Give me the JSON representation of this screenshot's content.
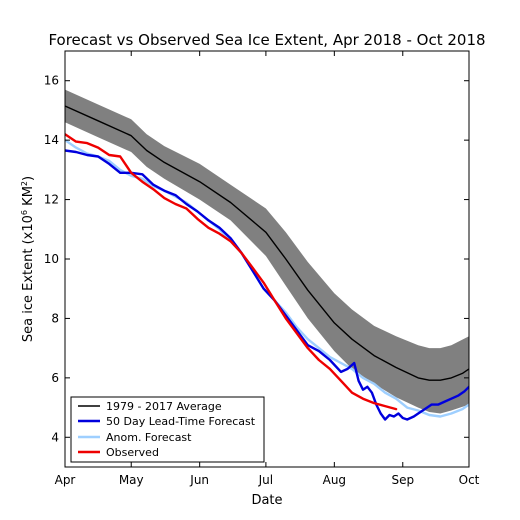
{
  "chart_data": {
    "type": "line",
    "title": "Forecast vs Observed Sea Ice Extent, Apr 2018 - Oct 2018",
    "xlabel": "Date",
    "ylabel": "Sea ice Extent (x10",
    "ylabel_exp": "6",
    "ylabel_unit": "KM",
    "ylabel_unit_exp": "2",
    "ylabel_close": ")",
    "xlim_days": [
      0,
      183
    ],
    "ylim": [
      3,
      17
    ],
    "x_ticks": [
      {
        "label": "Apr",
        "day": 0
      },
      {
        "label": "May",
        "day": 30
      },
      {
        "label": "Jun",
        "day": 61
      },
      {
        "label": "Jul",
        "day": 91
      },
      {
        "label": "Aug",
        "day": 122
      },
      {
        "label": "Sep",
        "day": 153
      },
      {
        "label": "Oct",
        "day": 183
      }
    ],
    "y_ticks": [
      4,
      6,
      8,
      10,
      12,
      14,
      16
    ],
    "legend_position": "lower-left",
    "band": {
      "color": "#808080",
      "x": [
        0,
        15,
        30,
        37,
        45,
        61,
        75,
        91,
        100,
        110,
        122,
        130,
        140,
        150,
        160,
        165,
        170,
        175,
        183
      ],
      "upper": [
        15.7,
        15.2,
        14.7,
        14.2,
        13.8,
        13.2,
        12.5,
        11.7,
        10.9,
        9.9,
        8.85,
        8.3,
        7.75,
        7.4,
        7.1,
        7.0,
        7.0,
        7.1,
        7.4
      ],
      "lower": [
        14.6,
        14.1,
        13.6,
        13.1,
        12.7,
        12.0,
        11.3,
        10.1,
        9.1,
        8.0,
        6.9,
        6.3,
        5.8,
        5.35,
        5.0,
        4.85,
        4.8,
        4.9,
        5.1
      ]
    },
    "series": [
      {
        "name": "1979 - 2017 Average",
        "color": "#000000",
        "width": 1.4,
        "x": [
          0,
          15,
          30,
          37,
          45,
          61,
          75,
          91,
          100,
          110,
          122,
          130,
          140,
          150,
          160,
          165,
          170,
          175,
          180,
          183
        ],
        "y": [
          15.15,
          14.65,
          14.15,
          13.65,
          13.25,
          12.6,
          11.9,
          10.9,
          10.0,
          8.95,
          7.85,
          7.3,
          6.75,
          6.35,
          6.0,
          5.92,
          5.92,
          6.0,
          6.15,
          6.3
        ]
      },
      {
        "name": "50 Day Lead-Time Forecast",
        "color": "#0000dd",
        "width": 2.4,
        "x": [
          0,
          5,
          10,
          15,
          20,
          25,
          30,
          35,
          40,
          45,
          50,
          55,
          60,
          65,
          70,
          75,
          80,
          85,
          90,
          95,
          100,
          105,
          110,
          115,
          120,
          125,
          128,
          131,
          133,
          135,
          137,
          139,
          141,
          143,
          145,
          147,
          149,
          151,
          153,
          155,
          158,
          160,
          163,
          166,
          169,
          172,
          175,
          178,
          181,
          183
        ],
        "y": [
          13.65,
          13.6,
          13.5,
          13.45,
          13.2,
          12.9,
          12.9,
          12.85,
          12.5,
          12.3,
          12.15,
          11.85,
          11.6,
          11.3,
          11.05,
          10.7,
          10.2,
          9.6,
          9.0,
          8.6,
          8.1,
          7.6,
          7.1,
          6.9,
          6.6,
          6.2,
          6.3,
          6.5,
          5.9,
          5.6,
          5.7,
          5.5,
          5.1,
          4.8,
          4.6,
          4.75,
          4.7,
          4.8,
          4.65,
          4.6,
          4.7,
          4.8,
          4.95,
          5.1,
          5.1,
          5.2,
          5.3,
          5.4,
          5.55,
          5.7
        ]
      },
      {
        "name": "Anom. Forecast",
        "color": "#9ecfff",
        "width": 2.4,
        "x": [
          0,
          5,
          10,
          15,
          20,
          25,
          30,
          35,
          40,
          45,
          50,
          55,
          60,
          65,
          70,
          75,
          80,
          85,
          90,
          95,
          100,
          105,
          110,
          115,
          120,
          125,
          130,
          135,
          140,
          145,
          150,
          155,
          160,
          165,
          170,
          175,
          180,
          183
        ],
        "y": [
          14.0,
          13.75,
          13.55,
          13.45,
          13.3,
          13.0,
          12.8,
          12.7,
          12.45,
          12.3,
          12.1,
          11.9,
          11.6,
          11.3,
          11.0,
          10.6,
          10.2,
          9.6,
          9.0,
          8.6,
          8.2,
          7.7,
          7.3,
          7.0,
          6.7,
          6.5,
          6.3,
          6.0,
          5.8,
          5.5,
          5.3,
          5.0,
          4.9,
          4.75,
          4.7,
          4.8,
          4.95,
          5.1
        ]
      },
      {
        "name": "Observed",
        "color": "#ee0000",
        "width": 2.4,
        "x": [
          0,
          5,
          10,
          15,
          20,
          25,
          30,
          35,
          40,
          45,
          50,
          55,
          60,
          65,
          70,
          75,
          80,
          85,
          90,
          95,
          100,
          105,
          110,
          115,
          120,
          125,
          130,
          135,
          140,
          145,
          150
        ],
        "y": [
          14.2,
          13.95,
          13.9,
          13.75,
          13.5,
          13.45,
          12.9,
          12.6,
          12.35,
          12.05,
          11.85,
          11.7,
          11.35,
          11.05,
          10.85,
          10.6,
          10.2,
          9.7,
          9.2,
          8.6,
          8.0,
          7.5,
          7.0,
          6.6,
          6.3,
          5.9,
          5.5,
          5.3,
          5.15,
          5.05,
          4.95
        ]
      }
    ]
  }
}
